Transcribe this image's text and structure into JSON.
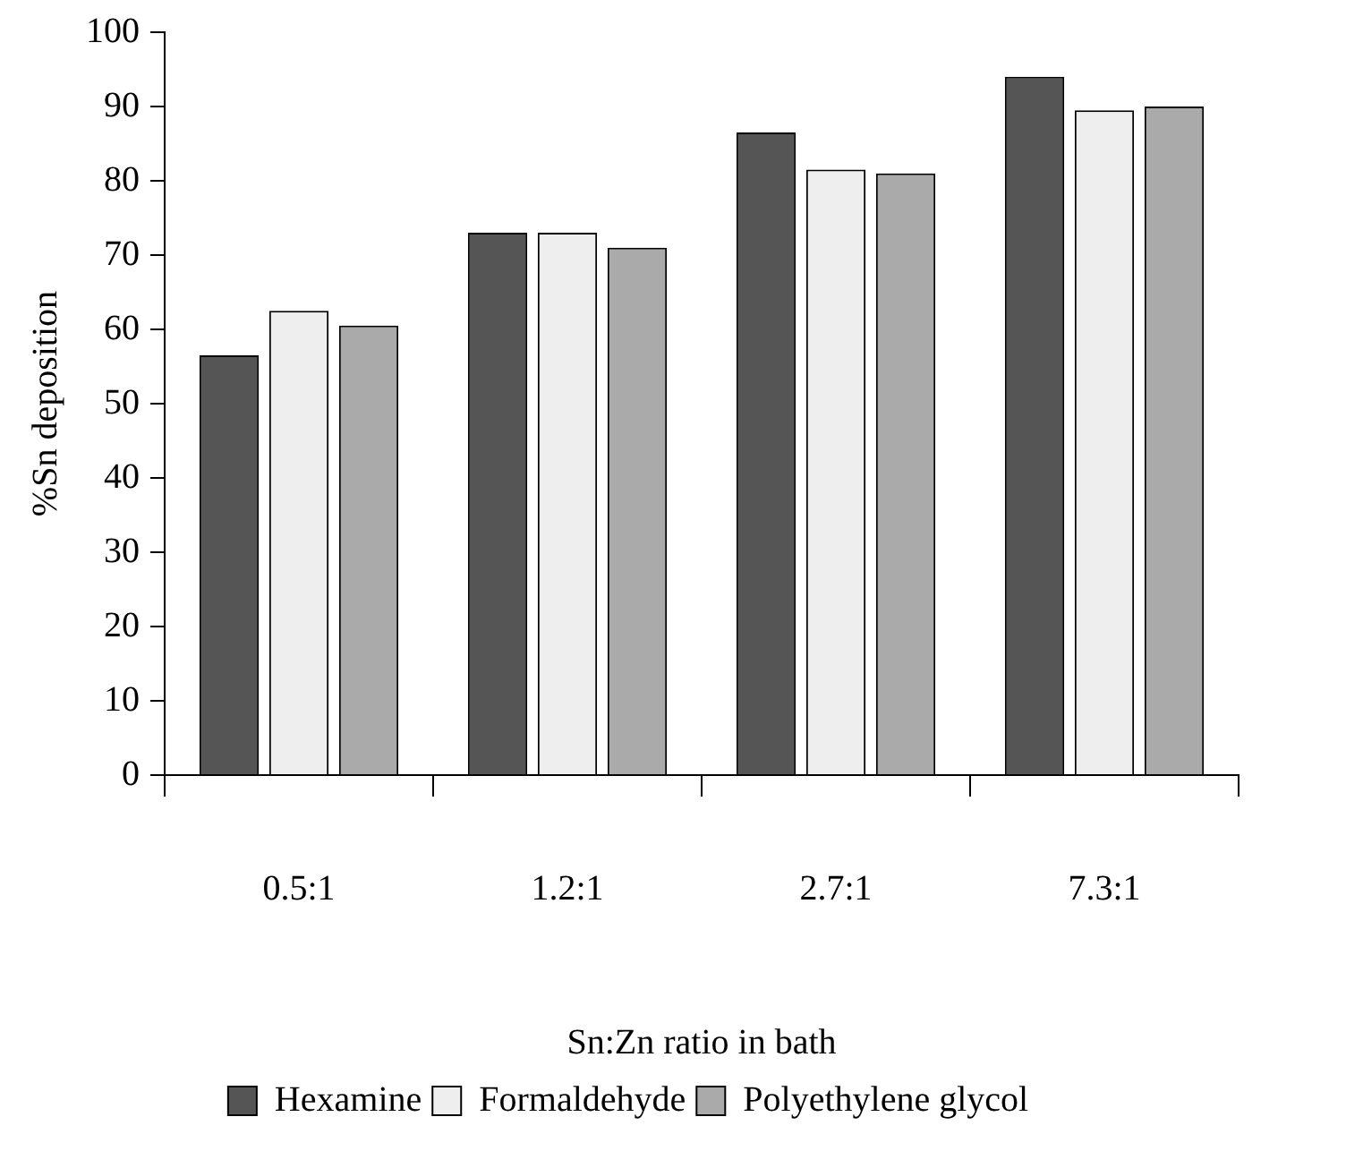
{
  "chart_data": {
    "type": "bar",
    "xlabel": "Sn:Zn ratio in bath",
    "ylabel": "%Sn deposition",
    "categories": [
      "0.5:1",
      "1.2:1",
      "2.7:1",
      "7.3:1"
    ],
    "series": [
      {
        "name": "Hexamine",
        "color": "#555555",
        "values": [
          56.5,
          73,
          86.5,
          94
        ]
      },
      {
        "name": "Formaldehyde",
        "color": "#eeeeee",
        "values": [
          62.5,
          73,
          81.5,
          89.5
        ]
      },
      {
        "name": "Polyethylene glycol",
        "color": "#aaaaaa",
        "values": [
          60.5,
          71,
          81,
          90
        ]
      }
    ],
    "ylim": [
      0,
      100
    ],
    "yticks": [
      0,
      10,
      20,
      30,
      40,
      50,
      60,
      70,
      80,
      90,
      100
    ],
    "grid": false,
    "legend": "bottom"
  }
}
